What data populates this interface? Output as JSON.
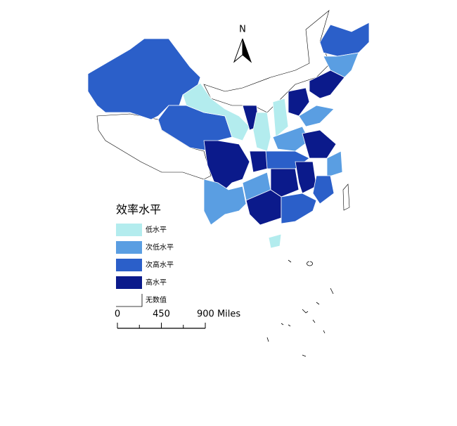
{
  "legend": {
    "title": "效率水平",
    "items": [
      {
        "label": "低水平",
        "color": "#b3ecee"
      },
      {
        "label": "次低水平",
        "color": "#5a9ee2"
      },
      {
        "label": "次高水平",
        "color": "#2b5fc9"
      },
      {
        "label": "高水平",
        "color": "#0b1a8b"
      },
      {
        "label": "无数值",
        "color": "#ffffff"
      }
    ]
  },
  "north_arrow": "N",
  "scale_bar": {
    "ticks": [
      0,
      450,
      {
        "value": 900,
        "label": "900 Miles"
      }
    ]
  }
}
